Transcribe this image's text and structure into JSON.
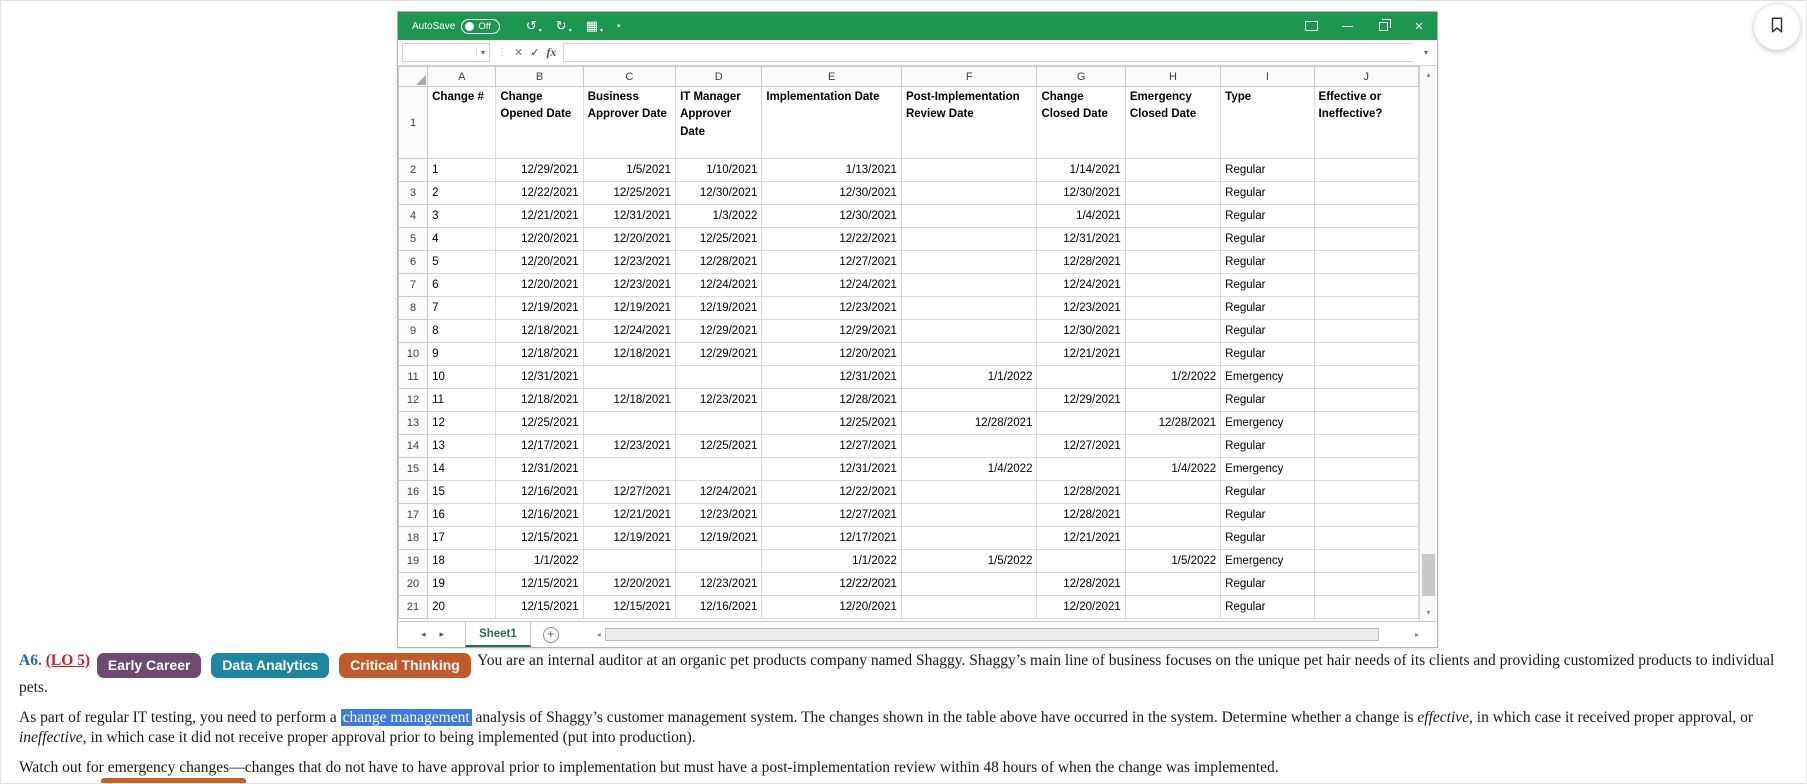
{
  "colors": {
    "excel_green": "#1d9750",
    "sheet_tab_green": "#217346",
    "selection_highlight": "#3b7bdb",
    "question_number_blue": "#2a6496",
    "lo_link_red": "#c7202a"
  },
  "icons": {
    "undo": "↺",
    "redo": "↻",
    "quick_access": "▦",
    "dropdown": "▾",
    "close": "✕",
    "formula_cancel": "✕",
    "formula_enter": "✓",
    "dots_divider": "⋮",
    "tab_prev": "◂",
    "tab_next": "▸",
    "scroll_up": "▴",
    "scroll_down": "▾",
    "scroll_left": "◂",
    "scroll_right": "▸",
    "add_sheet": "+"
  },
  "window": {
    "titlebar": {
      "autosave_label": "AutoSave",
      "autosave_state": "Off"
    },
    "formula_bar": {
      "name_box_value": "",
      "fx_label": "fx"
    },
    "sheet": {
      "column_letters": [
        "A",
        "B",
        "C",
        "D",
        "E",
        "F",
        "G",
        "H",
        "I",
        "J"
      ],
      "header_row": [
        "Change #",
        "Change Opened Date",
        "Business Approver Date",
        "IT Manager Approver Date",
        "Implementation Date",
        "Post-Implementation Review Date",
        "Change Closed Date",
        "Emergency Closed Date",
        "Type",
        "Effective or Ineffective?"
      ],
      "rows": [
        [
          "1",
          "12/29/2021",
          "1/5/2021",
          "1/10/2021",
          "1/13/2021",
          "",
          "1/14/2021",
          "",
          "Regular",
          ""
        ],
        [
          "2",
          "12/22/2021",
          "12/25/2021",
          "12/30/2021",
          "12/30/2021",
          "",
          "12/30/2021",
          "",
          "Regular",
          ""
        ],
        [
          "3",
          "12/21/2021",
          "12/31/2021",
          "1/3/2022",
          "12/30/2021",
          "",
          "1/4/2021",
          "",
          "Regular",
          ""
        ],
        [
          "4",
          "12/20/2021",
          "12/20/2021",
          "12/25/2021",
          "12/22/2021",
          "",
          "12/31/2021",
          "",
          "Regular",
          ""
        ],
        [
          "5",
          "12/20/2021",
          "12/23/2021",
          "12/28/2021",
          "12/27/2021",
          "",
          "12/28/2021",
          "",
          "Regular",
          ""
        ],
        [
          "6",
          "12/20/2021",
          "12/23/2021",
          "12/24/2021",
          "12/24/2021",
          "",
          "12/24/2021",
          "",
          "Regular",
          ""
        ],
        [
          "7",
          "12/19/2021",
          "12/19/2021",
          "12/19/2021",
          "12/23/2021",
          "",
          "12/23/2021",
          "",
          "Regular",
          ""
        ],
        [
          "8",
          "12/18/2021",
          "12/24/2021",
          "12/29/2021",
          "12/29/2021",
          "",
          "12/30/2021",
          "",
          "Regular",
          ""
        ],
        [
          "9",
          "12/18/2021",
          "12/18/2021",
          "12/29/2021",
          "12/20/2021",
          "",
          "12/21/2021",
          "",
          "Regular",
          ""
        ],
        [
          "10",
          "12/31/2021",
          "",
          "",
          "12/31/2021",
          "1/1/2022",
          "",
          "1/2/2022",
          "Emergency",
          ""
        ],
        [
          "11",
          "12/18/2021",
          "12/18/2021",
          "12/23/2021",
          "12/28/2021",
          "",
          "12/29/2021",
          "",
          "Regular",
          ""
        ],
        [
          "12",
          "12/25/2021",
          "",
          "",
          "12/25/2021",
          "12/28/2021",
          "",
          "12/28/2021",
          "Emergency",
          ""
        ],
        [
          "13",
          "12/17/2021",
          "12/23/2021",
          "12/25/2021",
          "12/27/2021",
          "",
          "12/27/2021",
          "",
          "Regular",
          ""
        ],
        [
          "14",
          "12/31/2021",
          "",
          "",
          "12/31/2021",
          "1/4/2022",
          "",
          "1/4/2022",
          "Emergency",
          ""
        ],
        [
          "15",
          "12/16/2021",
          "12/27/2021",
          "12/24/2021",
          "12/22/2021",
          "",
          "12/28/2021",
          "",
          "Regular",
          ""
        ],
        [
          "16",
          "12/16/2021",
          "12/21/2021",
          "12/23/2021",
          "12/27/2021",
          "",
          "12/28/2021",
          "",
          "Regular",
          ""
        ],
        [
          "17",
          "12/15/2021",
          "12/19/2021",
          "12/19/2021",
          "12/17/2021",
          "",
          "12/21/2021",
          "",
          "Regular",
          ""
        ],
        [
          "18",
          "1/1/2022",
          "",
          "",
          "1/1/2022",
          "1/5/2022",
          "",
          "1/5/2022",
          "Emergency",
          ""
        ],
        [
          "19",
          "12/15/2021",
          "12/20/2021",
          "12/23/2021",
          "12/22/2021",
          "",
          "12/28/2021",
          "",
          "Regular",
          ""
        ],
        [
          "20",
          "12/15/2021",
          "12/15/2021",
          "12/16/2021",
          "12/20/2021",
          "",
          "12/20/2021",
          "",
          "Regular",
          ""
        ]
      ]
    },
    "tab_bar": {
      "sheet_tab": "Sheet1"
    }
  },
  "question": {
    "number": "A6.",
    "lo": "(LO 5)",
    "badges": [
      {
        "label": "Early Career",
        "color": "#6d4a6e"
      },
      {
        "label": "Data Analytics",
        "color": "#1e87a0"
      },
      {
        "label": "Critical Thinking",
        "color": "#c15a2a"
      }
    ],
    "intro": "You are an internal auditor at an organic pet products company named Shaggy. Shaggy’s main line of business focuses on the unique pet hair needs of its clients and providing customized products to individual pets.",
    "p2_before": "As part of regular IT testing, you need to perform a ",
    "p2_highlight": "change management",
    "p2_mid1": " analysis of Shaggy’s customer management system. The changes shown in the table above have occurred in the system. Determine whether a change is ",
    "p2_italic1": "effective,",
    "p2_mid2": " in which case it received proper approval, or ",
    "p2_italic2": "ineffective,",
    "p2_after": " in which case it did not receive proper approval prior to being implemented (put into production).",
    "p3": "Watch out for emergency changes—changes that do not have to have approval prior to implementation but must have a post-implementation review within 48 hours of when the change was implemented."
  }
}
